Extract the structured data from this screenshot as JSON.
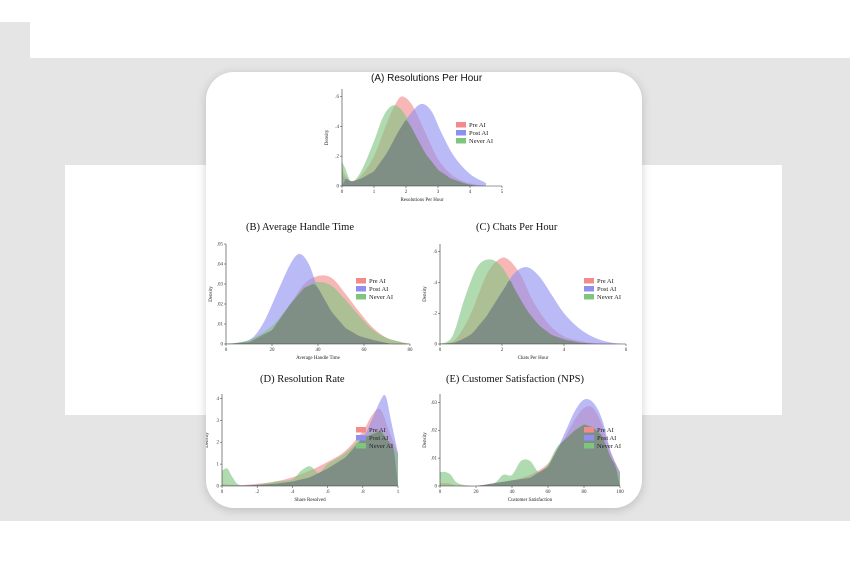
{
  "colors": {
    "pre": "#f28b8b",
    "post": "#8f8ff2",
    "never": "#7fc47f",
    "overlap": "#6f6f6f"
  },
  "legend": [
    "Pre AI",
    "Post AI",
    "Never AI"
  ],
  "chart_data": [
    {
      "id": "A",
      "type": "area",
      "title": "(A) Resolutions Per Hour",
      "xlabel": "Resolutions Per Hour",
      "ylabel": "Density",
      "xlim": [
        0,
        5
      ],
      "ylim": [
        0,
        0.65
      ],
      "xticks": [
        "0",
        "1",
        "2",
        "3",
        "4",
        "5"
      ],
      "yticks": [
        "0",
        ".2",
        ".4",
        ".6"
      ],
      "legend_position": "right",
      "series": [
        {
          "name": "Pre AI",
          "x": [
            0,
            0.1,
            0.3,
            0.6,
            1.0,
            1.4,
            1.7,
            1.9,
            2.2,
            2.6,
            3.0,
            3.4,
            3.8,
            4.2,
            4.5
          ],
          "y": [
            0.12,
            0.07,
            0.03,
            0.07,
            0.2,
            0.42,
            0.56,
            0.6,
            0.54,
            0.36,
            0.18,
            0.08,
            0.03,
            0.01,
            0
          ]
        },
        {
          "name": "Post AI",
          "x": [
            0,
            0.1,
            0.3,
            0.6,
            1.0,
            1.4,
            1.8,
            2.2,
            2.5,
            2.8,
            3.1,
            3.5,
            4.0,
            4.5
          ],
          "y": [
            0.07,
            0.05,
            0.03,
            0.05,
            0.1,
            0.22,
            0.38,
            0.5,
            0.55,
            0.5,
            0.36,
            0.2,
            0.08,
            0.02
          ]
        },
        {
          "name": "Never AI",
          "x": [
            0,
            0.1,
            0.3,
            0.6,
            1.0,
            1.3,
            1.6,
            1.9,
            2.2,
            2.6,
            3.0,
            3.4,
            3.8,
            4.2
          ],
          "y": [
            0.16,
            0.12,
            0.03,
            0.1,
            0.3,
            0.47,
            0.54,
            0.5,
            0.38,
            0.22,
            0.11,
            0.05,
            0.02,
            0
          ]
        }
      ]
    },
    {
      "id": "B",
      "type": "area",
      "title": "(B) Average Handle Time",
      "xlabel": "Average Handle Time",
      "ylabel": "Density",
      "xlim": [
        0,
        80
      ],
      "ylim": [
        0,
        0.05
      ],
      "xticks": [
        "0",
        "20",
        "40",
        "60",
        "80"
      ],
      "yticks": [
        "0",
        ".01",
        ".02",
        ".03",
        ".04",
        ".05"
      ],
      "legend_position": "right",
      "series": [
        {
          "name": "Pre AI",
          "x": [
            0,
            10,
            20,
            28,
            34,
            40,
            46,
            52,
            58,
            64,
            70,
            76,
            80
          ],
          "y": [
            0,
            0.001,
            0.007,
            0.02,
            0.03,
            0.034,
            0.033,
            0.025,
            0.016,
            0.008,
            0.003,
            0.001,
            0
          ]
        },
        {
          "name": "Post AI",
          "x": [
            0,
            10,
            16,
            22,
            28,
            32,
            36,
            40,
            46,
            52,
            58,
            64,
            72,
            80
          ],
          "y": [
            0,
            0.002,
            0.01,
            0.025,
            0.04,
            0.045,
            0.04,
            0.028,
            0.016,
            0.008,
            0.004,
            0.002,
            0,
            0
          ]
        },
        {
          "name": "Never AI",
          "x": [
            0,
            10,
            20,
            28,
            34,
            40,
            46,
            52,
            58,
            64,
            70,
            76,
            80
          ],
          "y": [
            0,
            0.002,
            0.009,
            0.02,
            0.028,
            0.031,
            0.029,
            0.022,
            0.014,
            0.007,
            0.003,
            0.001,
            0
          ]
        }
      ]
    },
    {
      "id": "C",
      "type": "area",
      "title": "(C) Chats Per Hour",
      "xlabel": "Chats Per Hour",
      "ylabel": "Density",
      "xlim": [
        0,
        6
      ],
      "ylim": [
        0,
        0.65
      ],
      "xticks": [
        "0",
        "2",
        "4",
        "6"
      ],
      "yticks": [
        "0",
        ".2",
        ".4",
        ".6"
      ],
      "legend_position": "right",
      "series": [
        {
          "name": "Pre AI",
          "x": [
            0,
            0.5,
            1.0,
            1.5,
            1.9,
            2.2,
            2.6,
            3.0,
            3.5,
            4.0,
            4.5,
            5.0,
            6.0
          ],
          "y": [
            0,
            0.03,
            0.2,
            0.45,
            0.55,
            0.55,
            0.45,
            0.28,
            0.13,
            0.05,
            0.02,
            0.005,
            0
          ]
        },
        {
          "name": "Post AI",
          "x": [
            0,
            0.5,
            1.0,
            1.5,
            2.0,
            2.4,
            2.8,
            3.2,
            3.6,
            4.0,
            4.5,
            5.0,
            5.5,
            6.0
          ],
          "y": [
            0,
            0.01,
            0.06,
            0.18,
            0.34,
            0.46,
            0.5,
            0.44,
            0.32,
            0.2,
            0.1,
            0.04,
            0.01,
            0
          ]
        },
        {
          "name": "Never AI",
          "x": [
            0,
            0.4,
            0.8,
            1.2,
            1.6,
            2.0,
            2.4,
            2.8,
            3.2,
            3.6,
            4.0,
            4.5,
            5.0,
            6.0
          ],
          "y": [
            0,
            0.05,
            0.3,
            0.5,
            0.55,
            0.5,
            0.36,
            0.22,
            0.12,
            0.06,
            0.03,
            0.01,
            0,
            0
          ]
        }
      ]
    },
    {
      "id": "D",
      "type": "area",
      "title": "(D) Resolution Rate",
      "xlabel": "Share Resolved",
      "ylabel": "Density",
      "xlim": [
        0,
        1
      ],
      "ylim": [
        0,
        4.2
      ],
      "xticks": [
        "0",
        ".2",
        ".4",
        ".6",
        ".8",
        "1"
      ],
      "yticks": [
        "0",
        "1",
        "2",
        "3",
        "4"
      ],
      "legend_position": "right",
      "series": [
        {
          "name": "Pre AI",
          "x": [
            0,
            0.05,
            0.1,
            0.2,
            0.3,
            0.4,
            0.5,
            0.6,
            0.7,
            0.8,
            0.85,
            0.9,
            0.95,
            1.0
          ],
          "y": [
            0.1,
            0.05,
            0.03,
            0.1,
            0.2,
            0.4,
            0.7,
            1.1,
            1.6,
            2.5,
            3.2,
            3.5,
            2.5,
            1.5
          ]
        },
        {
          "name": "Post AI",
          "x": [
            0,
            0.1,
            0.2,
            0.3,
            0.4,
            0.5,
            0.6,
            0.7,
            0.8,
            0.85,
            0.9,
            0.93,
            0.96,
            1.0
          ],
          "y": [
            0,
            0.02,
            0.05,
            0.1,
            0.2,
            0.4,
            0.8,
            1.3,
            2.2,
            3.0,
            3.9,
            4.1,
            3.0,
            1.5
          ]
        },
        {
          "name": "Never AI",
          "x": [
            0,
            0.03,
            0.06,
            0.1,
            0.2,
            0.3,
            0.4,
            0.45,
            0.5,
            0.55,
            0.6,
            0.7,
            0.8,
            0.9,
            0.95,
            1.0
          ],
          "y": [
            0.7,
            0.8,
            0.4,
            0.05,
            0.05,
            0.2,
            0.3,
            0.7,
            0.9,
            0.6,
            1.0,
            1.5,
            2.2,
            2.5,
            2.0,
            1.4
          ]
        }
      ]
    },
    {
      "id": "E",
      "type": "area",
      "title": "(E) Customer Satisfaction (NPS)",
      "xlabel": "Customer Satisfaction",
      "ylabel": "Density",
      "xlim": [
        0,
        100
      ],
      "ylim": [
        0,
        0.033
      ],
      "xticks": [
        "0",
        "20",
        "40",
        "60",
        "80",
        "100"
      ],
      "yticks": [
        "0",
        ".01",
        ".02",
        ".03"
      ],
      "legend_position": "right",
      "series": [
        {
          "name": "Pre AI",
          "x": [
            0,
            5,
            10,
            20,
            30,
            40,
            50,
            60,
            65,
            70,
            75,
            80,
            85,
            90,
            95,
            100
          ],
          "y": [
            0.001,
            0.001,
            0,
            0,
            0.001,
            0.002,
            0.004,
            0.008,
            0.013,
            0.018,
            0.024,
            0.028,
            0.028,
            0.022,
            0.012,
            0.005
          ]
        },
        {
          "name": "Post AI",
          "x": [
            0,
            10,
            20,
            30,
            40,
            50,
            60,
            65,
            70,
            75,
            80,
            85,
            90,
            95,
            100
          ],
          "y": [
            0,
            0,
            0,
            0.001,
            0.002,
            0.003,
            0.007,
            0.013,
            0.02,
            0.027,
            0.031,
            0.03,
            0.024,
            0.012,
            0.005
          ]
        },
        {
          "name": "Never AI",
          "x": [
            0,
            3,
            6,
            10,
            20,
            30,
            35,
            40,
            45,
            50,
            55,
            60,
            65,
            70,
            75,
            80,
            85,
            90,
            95,
            100
          ],
          "y": [
            0.005,
            0.005,
            0.004,
            0.001,
            0,
            0.001,
            0.004,
            0.004,
            0.009,
            0.009,
            0.005,
            0.008,
            0.014,
            0.017,
            0.02,
            0.022,
            0.021,
            0.018,
            0.01,
            0.004
          ]
        }
      ]
    }
  ]
}
